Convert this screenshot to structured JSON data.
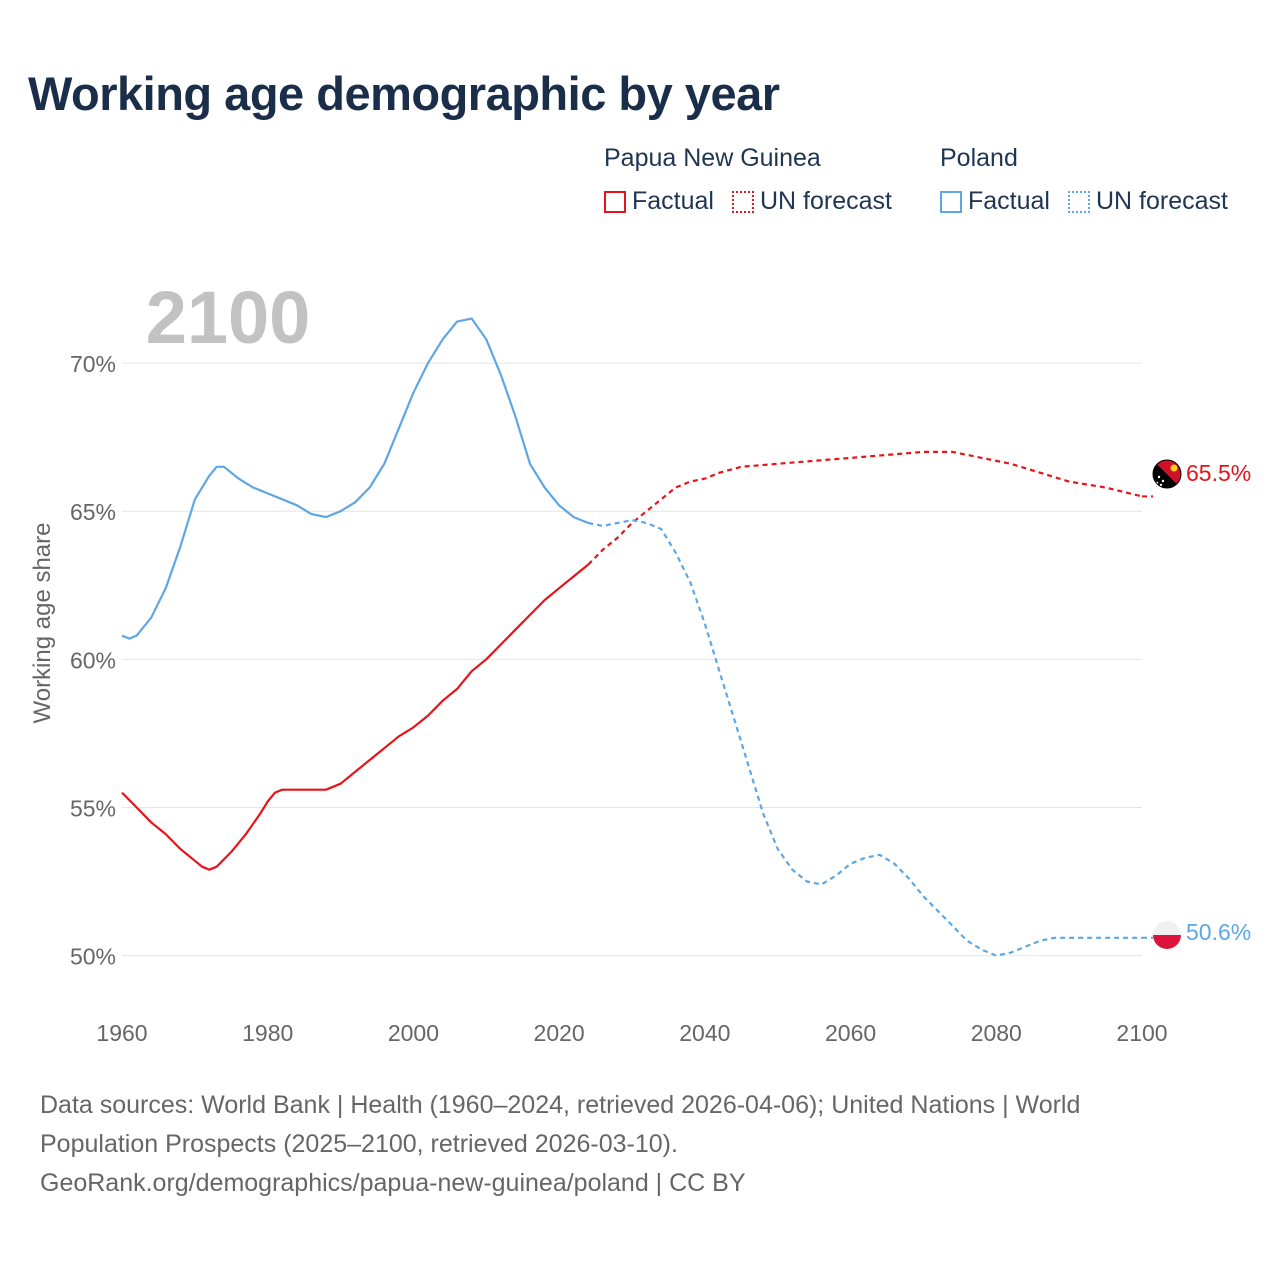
{
  "title": "Working age demographic by year",
  "year_overlay": "2100",
  "legend": {
    "groups": [
      {
        "name": "Papua New Guinea",
        "factual_label": "Factual",
        "forecast_label": "UN forecast",
        "color": "#e5141a"
      },
      {
        "name": "Poland",
        "factual_label": "Factual",
        "forecast_label": "UN forecast",
        "color": "#5ea6e4"
      }
    ]
  },
  "sources": {
    "line1": "Data sources: World Bank | Health (1960–2024, retrieved 2026-04-06); United Nations | World",
    "line2": "Population Prospects (2025–2100, retrieved 2026-03-10).",
    "line3": "GeoRank.org/demographics/papua-new-guinea/poland | CC BY"
  },
  "chart_data": {
    "type": "line",
    "ylabel": "Working age share",
    "xlabel": "",
    "xlim": [
      1960,
      2100
    ],
    "ylim": [
      48.5,
      72.5
    ],
    "x_ticks": [
      1960,
      1980,
      2000,
      2020,
      2040,
      2060,
      2080,
      2100
    ],
    "x_tick_labels": [
      "1960",
      "1980",
      "2000",
      "2020",
      "2040",
      "2060",
      "2080",
      "2100"
    ],
    "y_ticks": [
      50,
      55,
      60,
      65,
      70
    ],
    "y_tick_labels": [
      "50%",
      "55%",
      "60%",
      "65%",
      "70%"
    ],
    "grid": true,
    "forecast_start": 2024,
    "series": [
      {
        "name": "Papua New Guinea",
        "color": "#e5141a",
        "end_label": "65.5%",
        "x": [
          1960,
          1962,
          1964,
          1966,
          1968,
          1970,
          1971,
          1972,
          1973,
          1975,
          1977,
          1979,
          1980,
          1981,
          1982,
          1983,
          1985,
          1988,
          1990,
          1992,
          1994,
          1996,
          1998,
          2000,
          2002,
          2004,
          2006,
          2008,
          2010,
          2012,
          2014,
          2016,
          2018,
          2020,
          2022,
          2024,
          2026,
          2028,
          2030,
          2032,
          2034,
          2036,
          2038,
          2040,
          2042,
          2045,
          2050,
          2055,
          2060,
          2065,
          2070,
          2074,
          2078,
          2082,
          2086,
          2090,
          2095,
          2100
        ],
        "y": [
          55.5,
          55.0,
          54.5,
          54.1,
          53.6,
          53.2,
          53.0,
          52.9,
          53.0,
          53.5,
          54.1,
          54.8,
          55.2,
          55.5,
          55.6,
          55.6,
          55.6,
          55.6,
          55.8,
          56.2,
          56.6,
          57.0,
          57.4,
          57.7,
          58.1,
          58.6,
          59.0,
          59.6,
          60.0,
          60.5,
          61.0,
          61.5,
          62.0,
          62.4,
          62.8,
          63.2,
          63.7,
          64.1,
          64.6,
          65.0,
          65.4,
          65.8,
          66.0,
          66.1,
          66.3,
          66.5,
          66.6,
          66.7,
          66.8,
          66.9,
          67.0,
          67.0,
          66.8,
          66.6,
          66.3,
          66.0,
          65.8,
          65.5
        ]
      },
      {
        "name": "Poland",
        "color": "#5ea6e4",
        "end_label": "50.6%",
        "x": [
          1960,
          1961,
          1962,
          1964,
          1966,
          1968,
          1970,
          1972,
          1973,
          1974,
          1976,
          1978,
          1980,
          1982,
          1984,
          1986,
          1988,
          1990,
          1992,
          1994,
          1996,
          1998,
          2000,
          2002,
          2004,
          2006,
          2008,
          2010,
          2012,
          2014,
          2016,
          2018,
          2020,
          2022,
          2024,
          2026,
          2028,
          2030,
          2032,
          2034,
          2036,
          2038,
          2040,
          2042,
          2044,
          2046,
          2048,
          2050,
          2052,
          2054,
          2056,
          2058,
          2060,
          2062,
          2064,
          2066,
          2068,
          2070,
          2072,
          2074,
          2076,
          2078,
          2080,
          2082,
          2084,
          2086,
          2088,
          2090,
          2094,
          2098,
          2100
        ],
        "y": [
          60.8,
          60.7,
          60.8,
          61.4,
          62.4,
          63.8,
          65.4,
          66.2,
          66.5,
          66.5,
          66.1,
          65.8,
          65.6,
          65.4,
          65.2,
          64.9,
          64.8,
          65.0,
          65.3,
          65.8,
          66.6,
          67.8,
          69.0,
          70.0,
          70.8,
          71.4,
          71.5,
          70.8,
          69.6,
          68.2,
          66.6,
          65.8,
          65.2,
          64.8,
          64.6,
          64.5,
          64.6,
          64.7,
          64.6,
          64.4,
          63.6,
          62.6,
          61.2,
          59.6,
          58.0,
          56.4,
          54.8,
          53.6,
          52.9,
          52.5,
          52.4,
          52.7,
          53.1,
          53.3,
          53.4,
          53.1,
          52.6,
          52.0,
          51.5,
          51.0,
          50.5,
          50.2,
          50.0,
          50.1,
          50.3,
          50.5,
          50.6,
          50.6,
          50.6,
          50.6,
          50.6
        ]
      }
    ]
  }
}
